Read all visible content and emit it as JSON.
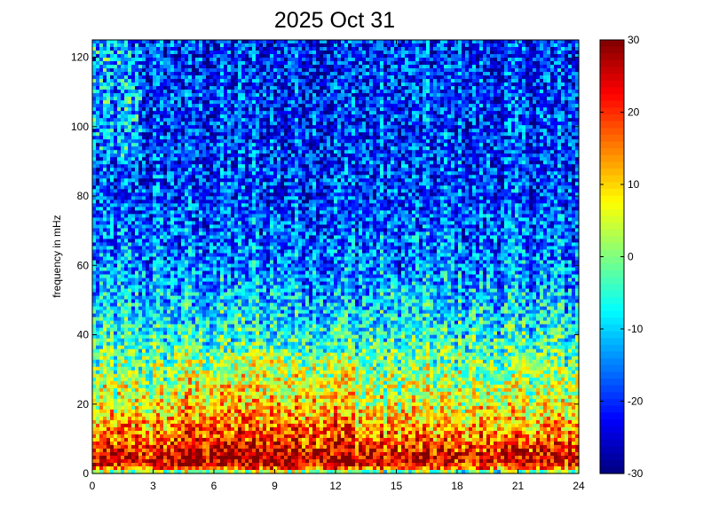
{
  "chart_data": {
    "type": "heatmap",
    "title": "2025 Oct 31",
    "xlabel": "",
    "ylabel": "frequency in mHz",
    "x": {
      "range": [
        0,
        24
      ],
      "ticks": [
        0,
        3,
        6,
        9,
        12,
        15,
        18,
        21,
        24
      ],
      "tick_labels": [
        "0",
        "3",
        "6",
        "9",
        "12",
        "15",
        "18",
        "21",
        "24"
      ]
    },
    "y": {
      "range": [
        0,
        125
      ],
      "ticks": [
        0,
        20,
        40,
        60,
        80,
        100,
        120
      ],
      "tick_labels": [
        "0",
        "20",
        "40",
        "60",
        "80",
        "100",
        "120"
      ]
    },
    "colorbar": {
      "range": [
        -30,
        30
      ],
      "ticks": [
        -30,
        -20,
        -10,
        0,
        10,
        20,
        30
      ],
      "tick_labels": [
        "-30",
        "-20",
        "-10",
        "0",
        "10",
        "20",
        "30"
      ],
      "colormap": "jet"
    },
    "power_profile_by_frequency": [
      {
        "freq": 0,
        "level": -8
      },
      {
        "freq": 2,
        "level": 22
      },
      {
        "freq": 5,
        "level": 24
      },
      {
        "freq": 10,
        "level": 16
      },
      {
        "freq": 20,
        "level": 6
      },
      {
        "freq": 30,
        "level": 0
      },
      {
        "freq": 40,
        "level": -6
      },
      {
        "freq": 50,
        "level": -11
      },
      {
        "freq": 60,
        "level": -15
      },
      {
        "freq": 80,
        "level": -19
      },
      {
        "freq": 100,
        "level": -20
      },
      {
        "freq": 125,
        "level": -20
      }
    ],
    "grid": false,
    "legend": "none"
  }
}
